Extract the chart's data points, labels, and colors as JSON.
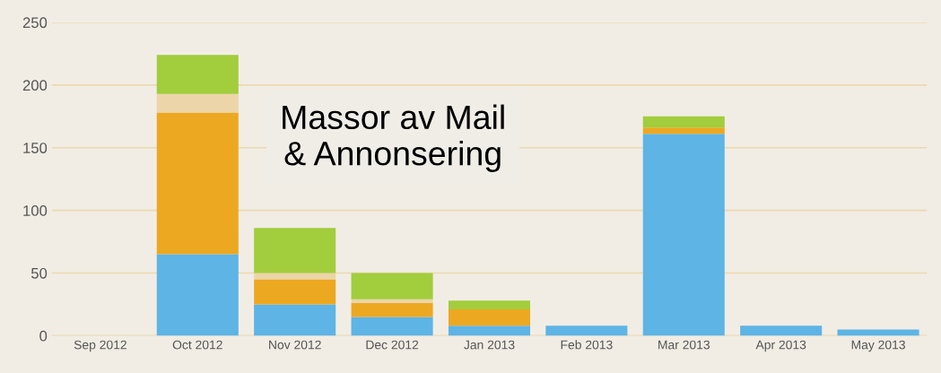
{
  "chart_data": {
    "type": "bar",
    "stacked": true,
    "categories": [
      "Sep 2012",
      "Oct 2012",
      "Nov 2012",
      "Dec 2012",
      "Jan 2013",
      "Feb 2013",
      "Mar 2013",
      "Apr 2013",
      "May 2013"
    ],
    "series": [
      {
        "color": "#5db4e5",
        "values": [
          0,
          65,
          25,
          15,
          8,
          8,
          161,
          8,
          5
        ]
      },
      {
        "color": "#eda821",
        "values": [
          0,
          113,
          20,
          11,
          13,
          0,
          5,
          0,
          0
        ]
      },
      {
        "color": "#ecd5a8",
        "values": [
          0,
          15,
          5,
          3,
          0,
          0,
          0,
          0,
          0
        ]
      },
      {
        "color": "#a2cd3c",
        "values": [
          0,
          31,
          36,
          21,
          7,
          0,
          9,
          0,
          0
        ]
      }
    ],
    "ylim": [
      0,
      250
    ],
    "yticks": [
      0,
      50,
      100,
      150,
      200,
      250
    ],
    "grid": "y",
    "annotations": [
      "Massor av Mail\n& Annonsering"
    ]
  }
}
